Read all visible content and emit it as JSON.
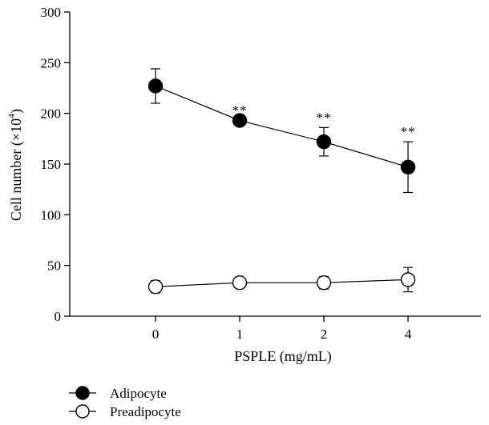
{
  "chart_data": {
    "type": "line",
    "xlabel": "PSPLE (mg/mL)",
    "ylabel_main": "Cell number (×10",
    "ylabel_sup": "4",
    "ylabel_close": ")",
    "categories": [
      "0",
      "1",
      "2",
      "4"
    ],
    "y_ticks": [
      "0",
      "50",
      "100",
      "150",
      "200",
      "250",
      "300"
    ],
    "ylim": [
      0,
      300
    ],
    "grid": false,
    "legend_position": "bottom-left",
    "series": [
      {
        "name": "Adipocyte",
        "marker": "filled-circle",
        "values": [
          227,
          193,
          172,
          147
        ],
        "errors": [
          17,
          0,
          14,
          25
        ],
        "annotations": [
          "",
          "**",
          "**",
          "**"
        ]
      },
      {
        "name": "Preadipocyte",
        "marker": "open-circle",
        "values": [
          29,
          33,
          33,
          36
        ],
        "errors": [
          6,
          0,
          6,
          12
        ],
        "annotations": [
          "",
          "",
          "",
          ""
        ]
      }
    ]
  }
}
